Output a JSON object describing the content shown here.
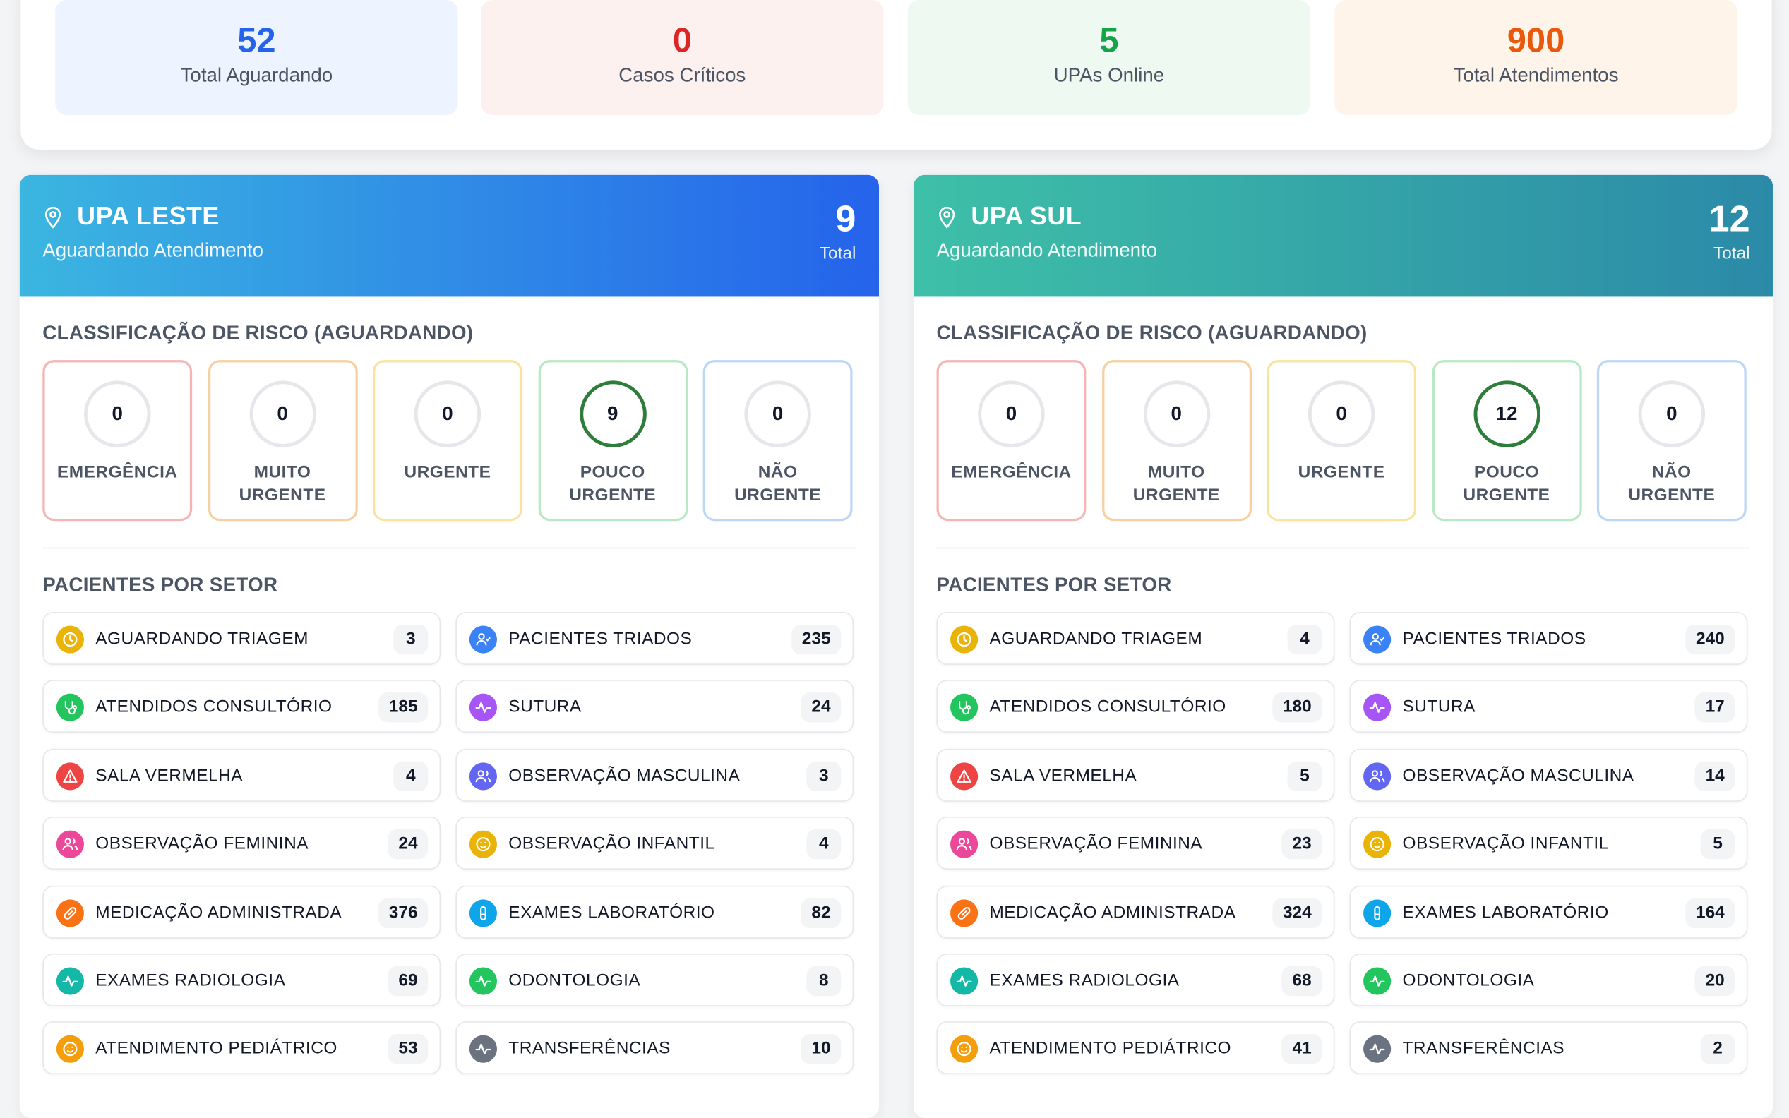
{
  "summary": [
    {
      "value": "52",
      "label": "Total Aguardando",
      "color": "#2563eb",
      "bg": "#eef4ff"
    },
    {
      "value": "0",
      "label": "Casos Críticos",
      "color": "#dc2626",
      "bg": "#fdf1f0"
    },
    {
      "value": "5",
      "label": "UPAs Online",
      "color": "#16a34a",
      "bg": "#eefaf1"
    },
    {
      "value": "900",
      "label": "Total Atendimentos",
      "color": "#ea580c",
      "bg": "#fff4e9"
    }
  ],
  "risk_title": "CLASSIFICAÇÃO DE RISCO (AGUARDANDO)",
  "sector_title": "PACIENTES POR SETOR",
  "upas": [
    {
      "name": "UPA LESTE",
      "subtitle": "Aguardando Atendimento",
      "total": "9",
      "total_label": "Total",
      "gradient": [
        "#3bb6e0",
        "#2563eb"
      ],
      "risk": [
        {
          "value": "0",
          "label": "EMERGÊNCIA"
        },
        {
          "value": "0",
          "label": "MUITO URGENTE"
        },
        {
          "value": "0",
          "label": "URGENTE"
        },
        {
          "value": "9",
          "label": "POUCO URGENTE"
        },
        {
          "value": "0",
          "label": "NÃO URGENTE"
        }
      ],
      "sectors": [
        {
          "label": "AGUARDANDO TRIAGEM",
          "value": "3",
          "icon": "clock-icon"
        },
        {
          "label": "PACIENTES TRIADOS",
          "value": "235",
          "icon": "user-check-icon"
        },
        {
          "label": "ATENDIDOS CONSULTÓRIO",
          "value": "185",
          "icon": "stethoscope-icon"
        },
        {
          "label": "SUTURA",
          "value": "24",
          "icon": "activity-icon"
        },
        {
          "label": "SALA VERMELHA",
          "value": "4",
          "icon": "alert-triangle-icon"
        },
        {
          "label": "OBSERVAÇÃO MASCULINA",
          "value": "3",
          "icon": "users-icon"
        },
        {
          "label": "OBSERVAÇÃO FEMININA",
          "value": "24",
          "icon": "users-icon"
        },
        {
          "label": "OBSERVAÇÃO INFANTIL",
          "value": "4",
          "icon": "smile-icon"
        },
        {
          "label": "MEDICAÇÃO ADMINISTRADA",
          "value": "376",
          "icon": "pill-icon"
        },
        {
          "label": "EXAMES LABORATÓRIO",
          "value": "82",
          "icon": "test-tube-icon"
        },
        {
          "label": "EXAMES RADIOLOGIA",
          "value": "69",
          "icon": "activity-icon"
        },
        {
          "label": "ODONTOLOGIA",
          "value": "8",
          "icon": "activity-icon"
        },
        {
          "label": "ATENDIMENTO PEDIÁTRICO",
          "value": "53",
          "icon": "smile-icon"
        },
        {
          "label": "TRANSFERÊNCIAS",
          "value": "10",
          "icon": "activity-icon"
        }
      ]
    },
    {
      "name": "UPA SUL",
      "subtitle": "Aguardando Atendimento",
      "total": "12",
      "total_label": "Total",
      "gradient": [
        "#3ec0a8",
        "#2b8aa8"
      ],
      "risk": [
        {
          "value": "0",
          "label": "EMERGÊNCIA"
        },
        {
          "value": "0",
          "label": "MUITO URGENTE"
        },
        {
          "value": "0",
          "label": "URGENTE"
        },
        {
          "value": "12",
          "label": "POUCO URGENTE"
        },
        {
          "value": "0",
          "label": "NÃO URGENTE"
        }
      ],
      "sectors": [
        {
          "label": "AGUARDANDO TRIAGEM",
          "value": "4",
          "icon": "clock-icon"
        },
        {
          "label": "PACIENTES TRIADOS",
          "value": "240",
          "icon": "user-check-icon"
        },
        {
          "label": "ATENDIDOS CONSULTÓRIO",
          "value": "180",
          "icon": "stethoscope-icon"
        },
        {
          "label": "SUTURA",
          "value": "17",
          "icon": "activity-icon"
        },
        {
          "label": "SALA VERMELHA",
          "value": "5",
          "icon": "alert-triangle-icon"
        },
        {
          "label": "OBSERVAÇÃO MASCULINA",
          "value": "14",
          "icon": "users-icon"
        },
        {
          "label": "OBSERVAÇÃO FEMININA",
          "value": "23",
          "icon": "users-icon"
        },
        {
          "label": "OBSERVAÇÃO INFANTIL",
          "value": "5",
          "icon": "smile-icon"
        },
        {
          "label": "MEDICAÇÃO ADMINISTRADA",
          "value": "324",
          "icon": "pill-icon"
        },
        {
          "label": "EXAMES LABORATÓRIO",
          "value": "164",
          "icon": "test-tube-icon"
        },
        {
          "label": "EXAMES RADIOLOGIA",
          "value": "68",
          "icon": "activity-icon"
        },
        {
          "label": "ODONTOLOGIA",
          "value": "20",
          "icon": "activity-icon"
        },
        {
          "label": "ATENDIMENTO PEDIÁTRICO",
          "value": "41",
          "icon": "smile-icon"
        },
        {
          "label": "TRANSFERÊNCIAS",
          "value": "2",
          "icon": "activity-icon"
        }
      ]
    }
  ],
  "risk_colors": [
    "#f5b5b5",
    "#f8cf9e",
    "#fbe49a",
    "#b8e8c4",
    "#bcd6f6"
  ],
  "risk_active_color": "#2e7d3a",
  "sector_icon_colors": [
    "#eab308",
    "#3b82f6",
    "#22c55e",
    "#a855f7",
    "#ef4444",
    "#6366f1",
    "#ec4899",
    "#eab308",
    "#f97316",
    "#0ea5e9",
    "#14b8a6",
    "#22c55e",
    "#f59e0b",
    "#6b7280"
  ]
}
